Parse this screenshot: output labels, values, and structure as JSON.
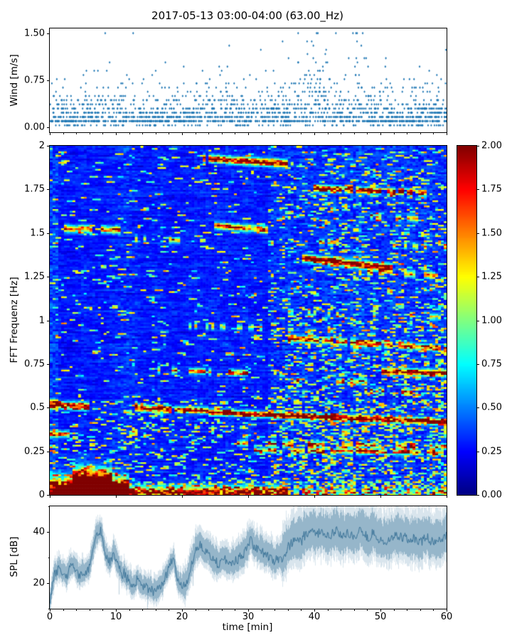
{
  "title": "2017-05-13 03:00-04:00 (63.00_Hz)",
  "colors": {
    "scatter": "#1f77b4",
    "spl_core": "#346e94",
    "spl_band": "#5488a8",
    "spl_fuzz": "#78a2c0",
    "axes": "#000000",
    "background": "#ffffff"
  },
  "chart_data": [
    {
      "type": "scatter",
      "name": "wind-speed",
      "ylabel": "Wind [m/s]",
      "ylim": [
        0.0,
        1.5
      ],
      "yticks": [
        0.0,
        0.75,
        1.5
      ],
      "ytick_labels": [
        "0.00",
        "0.75",
        "1.50"
      ],
      "xlim": [
        0,
        60
      ],
      "marker": "diamond",
      "n_points": 2000,
      "quantization_step": 0.0667,
      "max_value": 1.5,
      "description": "Quantized wind-speed samples, mostly 0.05-0.7 m/s in discrete horizontal rows, gust clusters near minutes 9, 26, 33, 40 and 47, peaking at 1.5 m/s around minute 40",
      "gusts": [
        {
          "t": 9,
          "boost": 0.35,
          "width": 3.0
        },
        {
          "t": 26,
          "boost": 0.45,
          "width": 2.0
        },
        {
          "t": 33,
          "boost": 0.3,
          "width": 1.5
        },
        {
          "t": 40,
          "boost": 1.6,
          "width": 3.0
        },
        {
          "t": 47,
          "boost": 0.9,
          "width": 2.0
        }
      ]
    },
    {
      "type": "heatmap",
      "name": "fft-spectrogram",
      "ylabel": "FFT Frequenz [Hz]",
      "ylim": [
        0,
        2
      ],
      "yticks": [
        0,
        0.25,
        0.5,
        0.75,
        1,
        1.25,
        1.5,
        1.75,
        2
      ],
      "ytick_labels": [
        "0",
        "0.25",
        "0.5",
        "0.75",
        "1",
        "1.25",
        "1.5",
        "1.75",
        "2"
      ],
      "xlim": [
        0,
        60
      ],
      "colormap": "jet",
      "clim": [
        0.0,
        2.0
      ],
      "grid": {
        "nt": 140,
        "nf": 200
      },
      "background_level": 0.25,
      "colorbar": {
        "ticks": [
          0,
          0.25,
          0.5,
          0.75,
          1,
          1.25,
          1.5,
          1.75,
          2
        ],
        "tick_labels": [
          "0.00",
          "0.25",
          "0.50",
          "0.75",
          "1.00",
          "1.25",
          "1.50",
          "1.75",
          "2.00"
        ]
      },
      "description": "Dark-blue background with speckled cyan/green noise, denser below 0.55 Hz and after minute 33; strong red energy near 0 Hz for the first ~35 min; narrow tonal ridges (listed in spectral_features) drifting slowly down in frequency over time, e.g. a strong line falling from ~0.47 Hz at minute 24 to ~0.42 Hz at minute 60",
      "spectral_features": [
        {
          "t": [
            0,
            12
          ],
          "f": [
            0.03,
            0.03
          ],
          "w": 0.05,
          "amp": 2.0,
          "duty": 0.95
        },
        {
          "t": [
            3.5,
            9.5
          ],
          "f": [
            0.09,
            0.07
          ],
          "w": 0.05,
          "amp": 1.8,
          "duty": 0.9
        },
        {
          "t": [
            0,
            36
          ],
          "f": [
            0.015,
            0.015
          ],
          "w": 0.025,
          "amp": 1.6,
          "duty": 0.8
        },
        {
          "t": [
            36,
            60
          ],
          "f": [
            0.015,
            0.015
          ],
          "w": 0.018,
          "amp": 0.8,
          "duty": 0.5
        },
        {
          "t": [
            0,
            6
          ],
          "f": [
            0.52,
            0.51
          ],
          "w": 0.014,
          "amp": 1.7,
          "duty": 0.85
        },
        {
          "t": [
            0,
            3
          ],
          "f": [
            0.35,
            0.35
          ],
          "w": 0.012,
          "amp": 1.4,
          "duty": 0.8
        },
        {
          "t": [
            13,
            24
          ],
          "f": [
            0.5,
            0.485
          ],
          "w": 0.012,
          "amp": 1.7,
          "duty": 0.8
        },
        {
          "t": [
            24,
            60
          ],
          "f": [
            0.475,
            0.42
          ],
          "w": 0.011,
          "amp": 2.0,
          "duty": 0.92
        },
        {
          "t": [
            28,
            60
          ],
          "f": [
            0.3,
            0.28
          ],
          "w": 0.011,
          "amp": 1.2,
          "duty": 0.5
        },
        {
          "t": [
            30,
            60
          ],
          "f": [
            0.26,
            0.245
          ],
          "w": 0.009,
          "amp": 1.4,
          "duty": 0.6
        },
        {
          "t": [
            16,
            30
          ],
          "f": [
            0.72,
            0.7
          ],
          "w": 0.011,
          "amp": 1.3,
          "duty": 0.5
        },
        {
          "t": [
            50,
            60
          ],
          "f": [
            0.71,
            0.7
          ],
          "w": 0.012,
          "amp": 1.8,
          "duty": 0.8
        },
        {
          "t": [
            36,
            60
          ],
          "f": [
            0.9,
            0.84
          ],
          "w": 0.012,
          "amp": 1.5,
          "duty": 0.65
        },
        {
          "t": [
            20,
            34
          ],
          "f": [
            0.97,
            0.96
          ],
          "w": 0.011,
          "amp": 1.0,
          "duty": 0.4
        },
        {
          "t": [
            38,
            52
          ],
          "f": [
            1.36,
            1.3
          ],
          "w": 0.014,
          "amp": 1.9,
          "duty": 0.8
        },
        {
          "t": [
            44,
            60
          ],
          "f": [
            1.28,
            1.26
          ],
          "w": 0.011,
          "amp": 1.2,
          "duty": 0.5
        },
        {
          "t": [
            2,
            11
          ],
          "f": [
            1.53,
            1.52
          ],
          "w": 0.013,
          "amp": 1.5,
          "duty": 0.7
        },
        {
          "t": [
            24,
            33
          ],
          "f": [
            1.55,
            1.52
          ],
          "w": 0.013,
          "amp": 1.6,
          "duty": 0.7
        },
        {
          "t": [
            13,
            20
          ],
          "f": [
            1.47,
            1.46
          ],
          "w": 0.011,
          "amp": 1.0,
          "duty": 0.4
        },
        {
          "t": [
            40,
            57
          ],
          "f": [
            1.76,
            1.73
          ],
          "w": 0.012,
          "amp": 1.7,
          "duty": 0.7
        },
        {
          "t": [
            23,
            36
          ],
          "f": [
            1.93,
            1.9
          ],
          "w": 0.014,
          "amp": 1.9,
          "duty": 0.75
        },
        {
          "t": [
            45,
            60
          ],
          "f": [
            1.6,
            1.58
          ],
          "w": 0.011,
          "amp": 1.1,
          "duty": 0.4
        },
        {
          "t": [
            47,
            55
          ],
          "f": [
            0.6,
            0.59
          ],
          "w": 0.011,
          "amp": 1.3,
          "duty": 0.5
        },
        {
          "t": [
            36,
            60
          ],
          "f": [
            1.05,
            1.02
          ],
          "w": 0.011,
          "amp": 0.9,
          "duty": 0.4
        },
        {
          "t": [
            40,
            60
          ],
          "f": [
            1.45,
            1.42
          ],
          "w": 0.011,
          "amp": 1.0,
          "duty": 0.4
        },
        {
          "t": [
            36,
            60
          ],
          "f": [
            0.66,
            0.64
          ],
          "w": 0.01,
          "amp": 1.0,
          "duty": 0.4
        }
      ]
    },
    {
      "type": "line",
      "name": "sound-pressure-level",
      "ylabel": "SPL [dB]",
      "xlabel": "time [min]",
      "ylim": [
        10,
        50
      ],
      "yticks": [
        20,
        40
      ],
      "ytick_labels": [
        "20",
        "40"
      ],
      "yticks_minor": [
        10,
        30,
        50
      ],
      "xticks": [
        0,
        10,
        20,
        30,
        40,
        50,
        60
      ],
      "xtick_labels": [
        "0",
        "10",
        "20",
        "30",
        "40",
        "50",
        "60"
      ],
      "envelope_half_width_db": 4,
      "description": "Dense fluctuating SPL trace: ~13 dB at start, spiky 20-35 dB with a burst to ~39 dB near minute 7-9, lull to ~16 dB near minutes 14-20, then rising; from minute ~37 a broad 33-45 dB band persists to minute 60",
      "mean_profile": [
        [
          0,
          13
        ],
        [
          0.7,
          24
        ],
        [
          1.5,
          26
        ],
        [
          2.5,
          24
        ],
        [
          3.5,
          27
        ],
        [
          4.5,
          25
        ],
        [
          6,
          27
        ],
        [
          7,
          37
        ],
        [
          7.6,
          39
        ],
        [
          8.3,
          31
        ],
        [
          9,
          29
        ],
        [
          9.6,
          34
        ],
        [
          10.5,
          26
        ],
        [
          11.5,
          24
        ],
        [
          12.5,
          20
        ],
        [
          13.2,
          23
        ],
        [
          14,
          17
        ],
        [
          15,
          18
        ],
        [
          16,
          16
        ],
        [
          17,
          20
        ],
        [
          18,
          26
        ],
        [
          18.7,
          28
        ],
        [
          19.3,
          19
        ],
        [
          20.3,
          18
        ],
        [
          21.3,
          26
        ],
        [
          22,
          33
        ],
        [
          22.6,
          35
        ],
        [
          23.5,
          31
        ],
        [
          24.5,
          29
        ],
        [
          25.5,
          27
        ],
        [
          26.5,
          30
        ],
        [
          27.5,
          29
        ],
        [
          28.5,
          31
        ],
        [
          29.5,
          33
        ],
        [
          30.3,
          35
        ],
        [
          31,
          33
        ],
        [
          32,
          31
        ],
        [
          33,
          29
        ],
        [
          34,
          28
        ],
        [
          35,
          30
        ],
        [
          36,
          33
        ],
        [
          37,
          35
        ],
        [
          38,
          36
        ],
        [
          39,
          39
        ],
        [
          40,
          39
        ],
        [
          41,
          40
        ],
        [
          42,
          39
        ],
        [
          43,
          40
        ],
        [
          44,
          39
        ],
        [
          45,
          40
        ],
        [
          46,
          38
        ],
        [
          47,
          39
        ],
        [
          48,
          38
        ],
        [
          49,
          39
        ],
        [
          50,
          38
        ],
        [
          51,
          37
        ],
        [
          52,
          38
        ],
        [
          53,
          37
        ],
        [
          54,
          38
        ],
        [
          55,
          38
        ],
        [
          56,
          37
        ],
        [
          57,
          38
        ],
        [
          58,
          37
        ],
        [
          59,
          38
        ],
        [
          60,
          38
        ]
      ]
    }
  ]
}
